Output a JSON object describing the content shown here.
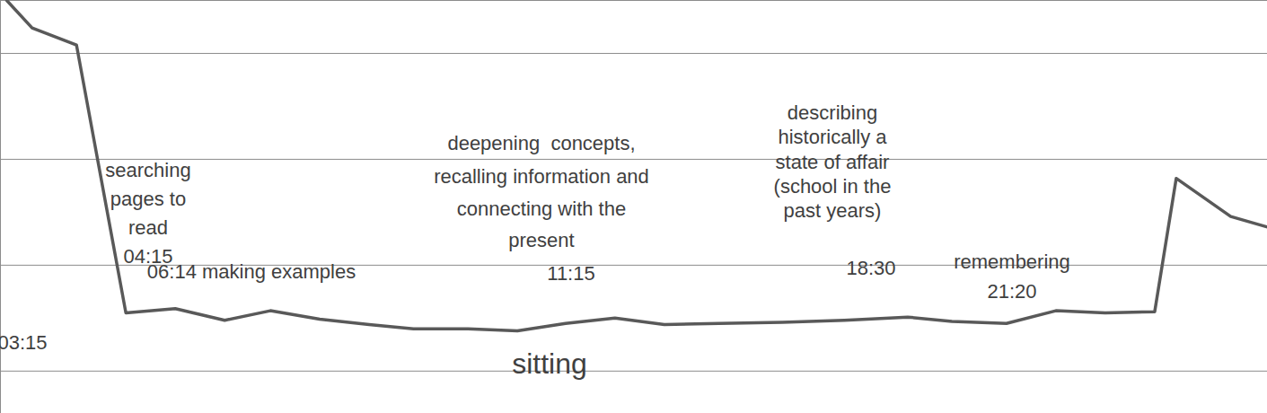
{
  "chart_data": {
    "type": "line",
    "x": [
      0.5,
      2.5,
      6.0,
      9.9,
      13.8,
      17.7,
      21.3,
      25.2,
      29.1,
      32.6,
      36.9,
      40.8,
      44.6,
      48.5,
      52.4,
      56.7,
      61.7,
      66.6,
      71.6,
      75.1,
      79.4,
      83.3,
      87.2,
      91.1,
      92.8,
      97.1,
      100
    ],
    "values": [
      3.5,
      3.24,
      3.08,
      0.55,
      0.59,
      0.48,
      0.57,
      0.49,
      0.44,
      0.4,
      0.4,
      0.38,
      0.45,
      0.5,
      0.44,
      0.45,
      0.46,
      0.48,
      0.51,
      0.47,
      0.45,
      0.57,
      0.55,
      0.56,
      1.82,
      1.46,
      1.36
    ],
    "color": "#595959",
    "xlim": [
      0,
      100
    ],
    "ylim": [
      -0.4,
      3.5
    ],
    "xticks": [],
    "yticks": [
      0,
      1,
      2,
      3
    ],
    "grid": true,
    "tick_labels": false,
    "annotations": [
      {
        "lines": [
          "searching",
          "pages to",
          "read",
          "04:15"
        ]
      },
      {
        "lines": [
          "06:14 making examples"
        ]
      },
      {
        "lines": [
          "deepening  concepts,",
          "recalling information and",
          "connecting with the",
          "present",
          "11:15"
        ]
      },
      {
        "lines": [
          "describing",
          "historically a",
          "state of affair",
          "(school in the",
          "past years)",
          "18:30"
        ]
      },
      {
        "lines": [
          "remembering",
          "21:20"
        ]
      },
      {
        "lines": [
          "03:15"
        ]
      },
      {
        "lines": [
          "sitting"
        ]
      }
    ]
  }
}
